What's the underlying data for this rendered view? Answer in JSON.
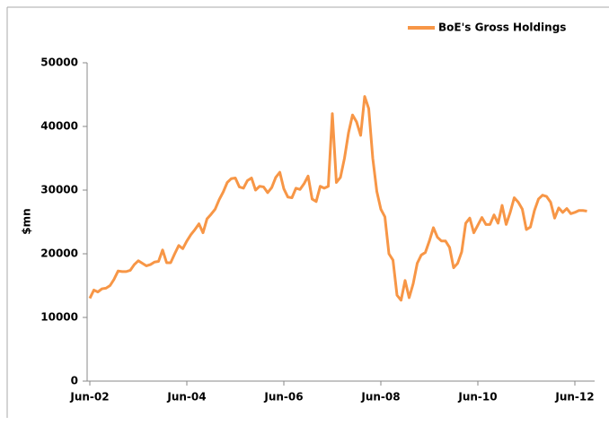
{
  "chart_data": {
    "type": "line",
    "y_label": "$mn",
    "categories": [
      "Jun-02",
      null,
      null,
      null,
      null,
      null,
      null,
      null,
      null,
      null,
      null,
      null,
      null,
      null,
      null,
      null,
      null,
      null,
      null,
      null,
      null,
      null,
      null,
      null,
      "Jun-04",
      null,
      null,
      null,
      null,
      null,
      null,
      null,
      null,
      null,
      null,
      null,
      null,
      null,
      null,
      null,
      null,
      null,
      null,
      null,
      null,
      null,
      null,
      null,
      "Jun-06",
      null,
      null,
      null,
      null,
      null,
      null,
      null,
      null,
      null,
      null,
      null,
      null,
      null,
      null,
      null,
      null,
      null,
      null,
      null,
      null,
      null,
      null,
      null,
      "Jun-08",
      null,
      null,
      null,
      null,
      null,
      null,
      null,
      null,
      null,
      null,
      null,
      null,
      null,
      null,
      null,
      null,
      null,
      null,
      null,
      null,
      null,
      null,
      null,
      "Jun-10",
      null,
      null,
      null,
      null,
      null,
      null,
      null,
      null,
      null,
      null,
      null,
      null,
      null,
      null,
      null,
      null,
      null,
      null,
      null,
      null,
      null,
      null,
      null,
      "Jun-12",
      null,
      null,
      null
    ],
    "series": [
      {
        "name": "BoE's Gross Holdings",
        "color": "#f79646",
        "values": [
          13000,
          14300,
          14000,
          14500,
          14600,
          15000,
          16000,
          17300,
          17200,
          17200,
          17400,
          18300,
          18900,
          18500,
          18100,
          18300,
          18700,
          18800,
          20600,
          18600,
          18600,
          20000,
          21300,
          20800,
          22000,
          23000,
          23800,
          24700,
          23300,
          25500,
          26200,
          27000,
          28500,
          29700,
          31200,
          31800,
          31900,
          30500,
          30300,
          31500,
          31900,
          30000,
          30600,
          30500,
          29600,
          30400,
          32000,
          32800,
          30200,
          28900,
          28800,
          30300,
          30100,
          31000,
          32200,
          28600,
          28200,
          30600,
          30300,
          30600,
          42000,
          31200,
          32000,
          35000,
          39000,
          41800,
          40700,
          38600,
          44700,
          42800,
          35000,
          29800,
          27000,
          25800,
          20000,
          19000,
          13500,
          12700,
          15800,
          13100,
          15300,
          18500,
          19800,
          20200,
          22000,
          24100,
          22600,
          22000,
          22000,
          21000,
          17800,
          18500,
          20300,
          24800,
          25600,
          23300,
          24500,
          25700,
          24600,
          24600,
          26100,
          24800,
          27600,
          24600,
          26500,
          28800,
          28100,
          27000,
          23800,
          24200,
          26800,
          28600,
          29200,
          29000,
          28100,
          25600,
          27200,
          26500,
          27100,
          26300,
          26500,
          26800,
          26800,
          26700
        ]
      }
    ],
    "ylim": [
      0,
      50000
    ],
    "yticks": [
      0,
      10000,
      20000,
      30000,
      40000,
      50000
    ],
    "legend": "top-right",
    "grid": false
  }
}
